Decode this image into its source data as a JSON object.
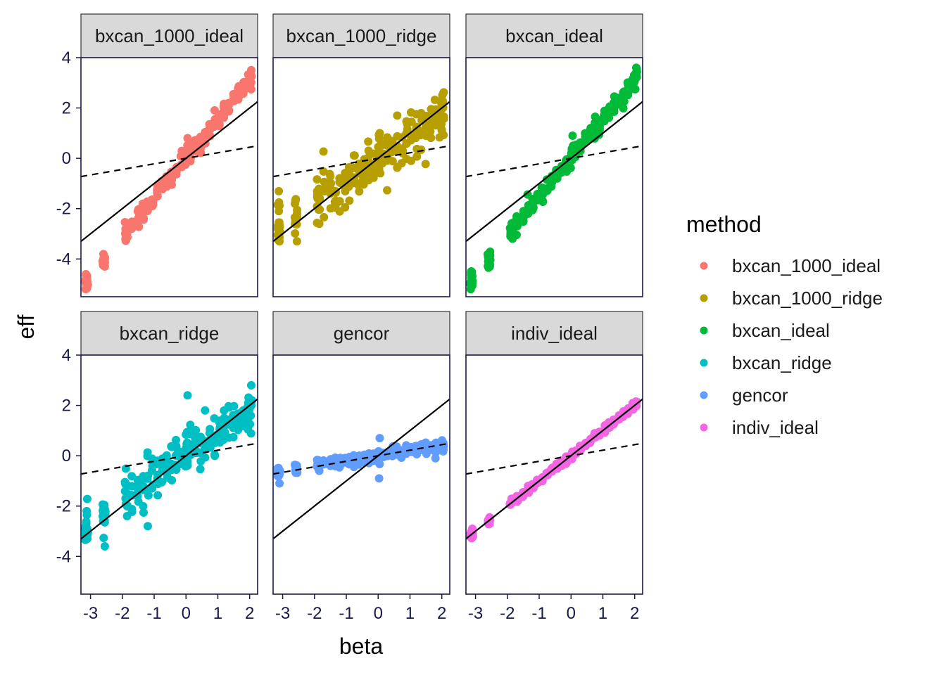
{
  "chart_data": {
    "type": "scatter",
    "xlabel": "beta",
    "ylabel": "eff",
    "xlim": [
      -3.3,
      2.25
    ],
    "ylim": [
      -5.5,
      4.0
    ],
    "x_ticks": [
      -3,
      -2,
      -1,
      0,
      1,
      2
    ],
    "x_tick_labels": [
      "-3",
      "-2",
      "-1",
      "0",
      "1",
      "2"
    ],
    "y_ticks": [
      -4,
      -2,
      0,
      2,
      4
    ],
    "y_tick_labels": [
      "-4",
      "-2",
      "0",
      "2",
      "4"
    ],
    "grid": false,
    "legend_title": "method",
    "legend_position": "right",
    "reference_lines": [
      {
        "style": "solid",
        "intercept": 0.0,
        "slope": 1.0
      },
      {
        "style": "dashed",
        "intercept": 0.0,
        "slope": 0.22
      }
    ],
    "panels": [
      {
        "name": "bxcan_1000_ideal",
        "color": "#F8766D",
        "slope": 1.55,
        "spread": 0.2,
        "points": [
          [
            -3.15,
            -5.2
          ],
          [
            -3.1,
            -4.95
          ],
          [
            -3.12,
            -5.05
          ],
          [
            -2.6,
            -4.1
          ],
          [
            -2.55,
            -4.3
          ],
          [
            -1.9,
            -3.2
          ],
          [
            -1.85,
            -3.0
          ],
          [
            -1.5,
            -2.5
          ],
          [
            -1.2,
            -2.0
          ],
          [
            -0.9,
            -1.4
          ],
          [
            -0.6,
            -0.9
          ],
          [
            -0.3,
            -0.4
          ],
          [
            0.0,
            0.0
          ],
          [
            0.05,
            0.8
          ],
          [
            0.3,
            0.5
          ],
          [
            0.6,
            1.0
          ],
          [
            0.9,
            1.4
          ],
          [
            1.2,
            1.9
          ],
          [
            1.5,
            2.4
          ],
          [
            1.8,
            2.9
          ],
          [
            2.0,
            3.2
          ],
          [
            2.05,
            3.5
          ]
        ]
      },
      {
        "name": "bxcan_1000_ridge",
        "color": "#B79F00",
        "slope": 0.85,
        "spread": 0.45,
        "points": [
          [
            -3.15,
            -2.8
          ],
          [
            -3.1,
            -3.3
          ],
          [
            -3.12,
            -2.1
          ],
          [
            -2.6,
            -2.5
          ],
          [
            -2.55,
            -3.3
          ],
          [
            -1.9,
            -1.6
          ],
          [
            -1.85,
            -2.6
          ],
          [
            -1.5,
            -1.4
          ],
          [
            -1.2,
            -0.8
          ],
          [
            -0.9,
            -0.7
          ],
          [
            -0.6,
            -1.0
          ],
          [
            -0.3,
            0.3
          ],
          [
            0.0,
            0.2
          ],
          [
            0.05,
            1.0
          ],
          [
            0.3,
            0.5
          ],
          [
            0.6,
            1.7
          ],
          [
            0.9,
            0.6
          ],
          [
            1.2,
            1.2
          ],
          [
            1.5,
            0.9
          ],
          [
            1.8,
            1.5
          ],
          [
            2.0,
            1.7
          ],
          [
            2.05,
            2.6
          ]
        ]
      },
      {
        "name": "bxcan_ideal",
        "color": "#00BA38",
        "slope": 1.55,
        "spread": 0.2,
        "points": [
          [
            -3.15,
            -5.2
          ],
          [
            -3.1,
            -4.9
          ],
          [
            -3.12,
            -5.05
          ],
          [
            -2.6,
            -4.1
          ],
          [
            -2.55,
            -4.3
          ],
          [
            -1.9,
            -3.1
          ],
          [
            -1.85,
            -3.0
          ],
          [
            -1.5,
            -2.5
          ],
          [
            -1.2,
            -2.0
          ],
          [
            -0.9,
            -1.4
          ],
          [
            -0.6,
            -0.9
          ],
          [
            -0.3,
            -0.4
          ],
          [
            0.0,
            0.0
          ],
          [
            0.05,
            0.9
          ],
          [
            0.3,
            0.5
          ],
          [
            0.6,
            1.0
          ],
          [
            0.9,
            1.4
          ],
          [
            1.2,
            1.9
          ],
          [
            1.5,
            2.4
          ],
          [
            1.8,
            2.9
          ],
          [
            2.0,
            3.3
          ],
          [
            2.05,
            3.6
          ]
        ]
      },
      {
        "name": "bxcan_ridge",
        "color": "#00BFC4",
        "slope": 0.9,
        "spread": 0.45,
        "points": [
          [
            -3.15,
            -2.8
          ],
          [
            -3.1,
            -3.3
          ],
          [
            -3.12,
            -2.2
          ],
          [
            -2.6,
            -2.6
          ],
          [
            -2.55,
            -3.6
          ],
          [
            -1.9,
            -1.7
          ],
          [
            -1.85,
            -2.4
          ],
          [
            -1.5,
            -1.4
          ],
          [
            -1.2,
            -2.8
          ],
          [
            -0.9,
            -0.9
          ],
          [
            -0.6,
            -0.7
          ],
          [
            -0.3,
            0.3
          ],
          [
            0.0,
            0.0
          ],
          [
            0.05,
            2.4
          ],
          [
            0.3,
            0.5
          ],
          [
            0.6,
            1.8
          ],
          [
            0.9,
            0.7
          ],
          [
            1.2,
            1.5
          ],
          [
            1.5,
            1.2
          ],
          [
            1.8,
            1.8
          ],
          [
            2.0,
            2.2
          ],
          [
            2.05,
            2.8
          ]
        ]
      },
      {
        "name": "gencor",
        "color": "#619CFF",
        "slope": 0.2,
        "spread": 0.12,
        "points": [
          [
            -3.15,
            -0.5
          ],
          [
            -3.1,
            -1.1
          ],
          [
            -3.12,
            -0.8
          ],
          [
            -2.6,
            -0.6
          ],
          [
            -2.55,
            -0.4
          ],
          [
            -1.9,
            -0.3
          ],
          [
            -1.85,
            -0.6
          ],
          [
            -1.5,
            -0.4
          ],
          [
            -1.2,
            -0.2
          ],
          [
            -0.9,
            -0.3
          ],
          [
            -0.6,
            -0.1
          ],
          [
            -0.3,
            0.0
          ],
          [
            0.0,
            0.0
          ],
          [
            0.05,
            0.7
          ],
          [
            0.03,
            -0.9
          ],
          [
            0.3,
            0.1
          ],
          [
            0.6,
            0.2
          ],
          [
            0.9,
            0.3
          ],
          [
            1.2,
            0.2
          ],
          [
            1.5,
            0.4
          ],
          [
            1.8,
            -0.1
          ],
          [
            2.05,
            0.5
          ]
        ]
      },
      {
        "name": "indiv_ideal",
        "color": "#F564E3",
        "slope": 1.0,
        "spread": 0.07,
        "points": [
          [
            -3.15,
            -3.1
          ],
          [
            -3.1,
            -2.9
          ],
          [
            -2.6,
            -2.6
          ],
          [
            -2.55,
            -2.5
          ],
          [
            -1.9,
            -1.9
          ],
          [
            -1.85,
            -1.8
          ],
          [
            -1.5,
            -1.5
          ],
          [
            -1.2,
            -1.2
          ],
          [
            -0.9,
            -0.9
          ],
          [
            -0.6,
            -0.6
          ],
          [
            -0.3,
            -0.3
          ],
          [
            0.0,
            0.0
          ],
          [
            0.05,
            0.1
          ],
          [
            0.3,
            0.3
          ],
          [
            0.6,
            0.6
          ],
          [
            0.9,
            0.9
          ],
          [
            1.2,
            1.2
          ],
          [
            1.5,
            1.5
          ],
          [
            1.8,
            1.8
          ],
          [
            2.0,
            2.0
          ],
          [
            2.05,
            2.1
          ]
        ]
      }
    ]
  }
}
